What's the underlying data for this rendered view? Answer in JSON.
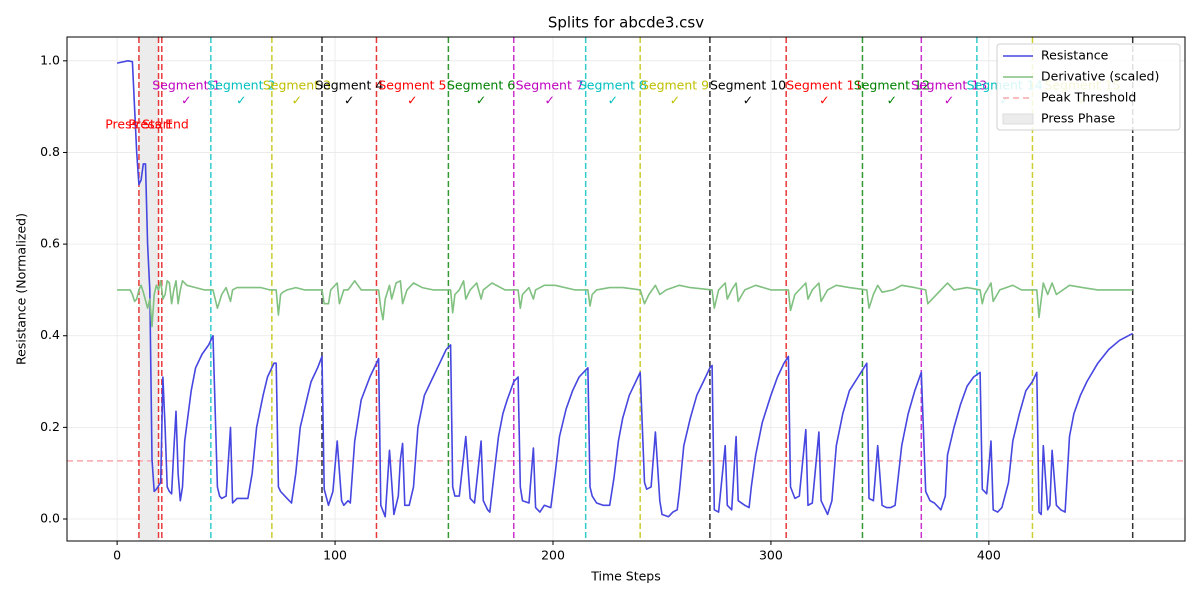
{
  "chart_data": {
    "type": "line",
    "title": "Splits for abcde3.csv",
    "xlabel": "Time Steps",
    "ylabel": "Resistance (Normalized)",
    "xlim": [
      -23,
      490
    ],
    "ylim": [
      -0.048,
      1.052
    ],
    "xticks": [
      0,
      100,
      200,
      300,
      400
    ],
    "yticks": [
      {
        "value": 0,
        "label": "0.0"
      },
      {
        "value": 0.2,
        "label": "0.2"
      },
      {
        "value": 0.4,
        "label": "0.4"
      },
      {
        "value": 0.6,
        "label": "0.6"
      },
      {
        "value": 0.8,
        "label": "0.8"
      },
      {
        "value": 1,
        "label": "1.0"
      }
    ],
    "grid": true,
    "legend": "upper right",
    "series": [
      {
        "name": "Resistance",
        "color": "#4646e0",
        "x": [
          0,
          5,
          7,
          9,
          10,
          11,
          12,
          13,
          14,
          15,
          16,
          17,
          18,
          20,
          21,
          22,
          23,
          24,
          25,
          26,
          27,
          28,
          29,
          30,
          31,
          34,
          36,
          39,
          42,
          44,
          46,
          47,
          48,
          50,
          52,
          53,
          55,
          60,
          62,
          64,
          67,
          69,
          72,
          73,
          74,
          75,
          78,
          80,
          82,
          84,
          87,
          89,
          92,
          94,
          95,
          97,
          99,
          101,
          103,
          104,
          106,
          107,
          109,
          112,
          116,
          120,
          121,
          123,
          125,
          127,
          129,
          130,
          131,
          132,
          134,
          136,
          138,
          141,
          145,
          148,
          151,
          153,
          154,
          155,
          157,
          160,
          162,
          164,
          167,
          168,
          170,
          171,
          173,
          175,
          177,
          179,
          182,
          184,
          185,
          186,
          189,
          191,
          192,
          194,
          196,
          199,
          201,
          203,
          206,
          209,
          212,
          216,
          217,
          218,
          220,
          223,
          226,
          228,
          230,
          232,
          235,
          238,
          240,
          242,
          243,
          245,
          247,
          249,
          250,
          253,
          255,
          257,
          258,
          260,
          263,
          266,
          269,
          272,
          273,
          274,
          276,
          279,
          280,
          282,
          284,
          285,
          288,
          290,
          291,
          293,
          296,
          300,
          303,
          306,
          308,
          309,
          311,
          313,
          316,
          317,
          319,
          322,
          323,
          326,
          328,
          330,
          333,
          336,
          340,
          344,
          345,
          347,
          349,
          351,
          353,
          355,
          357,
          360,
          363,
          366,
          369,
          371,
          373,
          375,
          378,
          380,
          381,
          384,
          387,
          390,
          393,
          396,
          397,
          399,
          401,
          402,
          404,
          406,
          409,
          411,
          414,
          417,
          420,
          422,
          423,
          424,
          425,
          427,
          428,
          429,
          431,
          433,
          435,
          437,
          439,
          442,
          445,
          450,
          455,
          460,
          466
        ],
        "values": [
          0.995,
          1.0,
          0.998,
          0.8,
          0.73,
          0.74,
          0.775,
          0.775,
          0.6,
          0.5,
          0.13,
          0.06,
          0.065,
          0.08,
          0.31,
          0.2,
          0.07,
          0.06,
          0.055,
          0.15,
          0.235,
          0.1,
          0.04,
          0.07,
          0.17,
          0.28,
          0.33,
          0.36,
          0.38,
          0.4,
          0.07,
          0.05,
          0.045,
          0.05,
          0.2,
          0.035,
          0.045,
          0.045,
          0.1,
          0.2,
          0.27,
          0.31,
          0.34,
          0.34,
          0.07,
          0.06,
          0.045,
          0.035,
          0.1,
          0.2,
          0.26,
          0.3,
          0.33,
          0.355,
          0.065,
          0.03,
          0.06,
          0.17,
          0.04,
          0.03,
          0.04,
          0.035,
          0.17,
          0.26,
          0.31,
          0.35,
          0.03,
          0.005,
          0.15,
          0.01,
          0.05,
          0.13,
          0.165,
          0.03,
          0.03,
          0.07,
          0.2,
          0.27,
          0.31,
          0.34,
          0.37,
          0.38,
          0.07,
          0.05,
          0.05,
          0.18,
          0.045,
          0.035,
          0.17,
          0.04,
          0.02,
          0.015,
          0.1,
          0.18,
          0.23,
          0.26,
          0.3,
          0.31,
          0.07,
          0.04,
          0.035,
          0.155,
          0.025,
          0.015,
          0.03,
          0.025,
          0.1,
          0.18,
          0.24,
          0.28,
          0.31,
          0.33,
          0.07,
          0.05,
          0.035,
          0.03,
          0.03,
          0.09,
          0.17,
          0.22,
          0.27,
          0.3,
          0.32,
          0.08,
          0.065,
          0.07,
          0.19,
          0.04,
          0.01,
          0.005,
          0.015,
          0.02,
          0.06,
          0.16,
          0.22,
          0.27,
          0.3,
          0.33,
          0.335,
          0.02,
          0.015,
          0.16,
          0.03,
          0.02,
          0.18,
          0.04,
          0.03,
          0.025,
          0.07,
          0.14,
          0.21,
          0.27,
          0.31,
          0.34,
          0.355,
          0.07,
          0.045,
          0.05,
          0.195,
          0.03,
          0.035,
          0.19,
          0.04,
          0.01,
          0.04,
          0.16,
          0.23,
          0.28,
          0.31,
          0.34,
          0.045,
          0.04,
          0.16,
          0.03,
          0.025,
          0.025,
          0.03,
          0.16,
          0.23,
          0.28,
          0.32,
          0.06,
          0.04,
          0.035,
          0.02,
          0.05,
          0.14,
          0.2,
          0.25,
          0.29,
          0.31,
          0.32,
          0.065,
          0.055,
          0.17,
          0.02,
          0.015,
          0.025,
          0.08,
          0.17,
          0.23,
          0.28,
          0.3,
          0.32,
          0.015,
          0.01,
          0.16,
          0.02,
          0.03,
          0.15,
          0.03,
          0.02,
          0.015,
          0.18,
          0.23,
          0.27,
          0.3,
          0.34,
          0.37,
          0.39,
          0.405
        ]
      },
      {
        "name": "Derivative (scaled)",
        "color": "#80c080",
        "x": [
          0,
          6,
          7,
          8,
          9,
          10,
          11,
          12,
          14,
          15,
          16,
          17,
          18,
          19,
          20,
          21,
          22,
          23,
          24,
          25,
          26,
          27,
          28,
          29,
          30,
          32,
          36,
          40,
          44,
          46,
          47,
          48,
          50,
          52,
          53,
          55,
          62,
          66,
          70,
          73,
          74,
          75,
          76,
          78,
          82,
          86,
          94,
          95,
          97,
          98,
          101,
          102,
          104,
          106,
          109,
          112,
          120,
          121,
          122,
          123,
          125,
          126,
          128,
          130,
          131,
          133,
          136,
          140,
          145,
          153,
          154,
          155,
          157,
          159,
          160,
          162,
          165,
          167,
          168,
          172,
          178,
          184,
          185,
          186,
          189,
          191,
          192,
          196,
          201,
          210,
          216,
          217,
          218,
          220,
          226,
          232,
          240,
          242,
          244,
          247,
          249,
          252,
          258,
          263,
          273,
          274,
          276,
          279,
          280,
          282,
          284,
          285,
          288,
          293,
          300,
          308,
          309,
          311,
          316,
          317,
          319,
          322,
          323,
          326,
          330,
          336,
          344,
          345,
          347,
          349,
          351,
          356,
          360,
          366,
          371,
          372,
          374,
          378,
          381,
          384,
          390,
          396,
          397,
          398,
          401,
          402,
          405,
          411,
          415,
          422,
          423,
          425,
          427,
          429,
          431,
          437,
          443,
          450,
          466
        ],
        "values": [
          0.5,
          0.5,
          0.49,
          0.475,
          0.48,
          0.5,
          0.51,
          0.495,
          0.46,
          0.48,
          0.42,
          0.49,
          0.51,
          0.5,
          0.52,
          0.48,
          0.49,
          0.52,
          0.515,
          0.47,
          0.5,
          0.52,
          0.47,
          0.5,
          0.52,
          0.51,
          0.505,
          0.5,
          0.5,
          0.46,
          0.475,
          0.49,
          0.505,
          0.475,
          0.5,
          0.505,
          0.505,
          0.505,
          0.5,
          0.5,
          0.445,
          0.49,
          0.495,
          0.5,
          0.505,
          0.5,
          0.5,
          0.47,
          0.47,
          0.5,
          0.515,
          0.47,
          0.5,
          0.5,
          0.52,
          0.5,
          0.5,
          0.46,
          0.435,
          0.48,
          0.51,
          0.48,
          0.515,
          0.52,
          0.47,
          0.5,
          0.515,
          0.505,
          0.5,
          0.5,
          0.45,
          0.49,
          0.5,
          0.52,
          0.48,
          0.5,
          0.515,
          0.48,
          0.5,
          0.515,
          0.5,
          0.5,
          0.46,
          0.49,
          0.505,
          0.48,
          0.5,
          0.51,
          0.51,
          0.5,
          0.5,
          0.465,
          0.49,
          0.5,
          0.505,
          0.505,
          0.5,
          0.47,
          0.49,
          0.51,
          0.49,
          0.5,
          0.51,
          0.505,
          0.5,
          0.46,
          0.5,
          0.515,
          0.48,
          0.5,
          0.515,
          0.475,
          0.5,
          0.51,
          0.5,
          0.5,
          0.455,
          0.49,
          0.515,
          0.48,
          0.5,
          0.515,
          0.475,
          0.5,
          0.51,
          0.505,
          0.5,
          0.46,
          0.49,
          0.51,
          0.495,
          0.5,
          0.51,
          0.505,
          0.5,
          0.47,
          0.48,
          0.5,
          0.515,
          0.5,
          0.505,
          0.5,
          0.47,
          0.49,
          0.515,
          0.475,
          0.5,
          0.51,
          0.5,
          0.5,
          0.44,
          0.515,
          0.49,
          0.515,
          0.49,
          0.51,
          0.505,
          0.5,
          0.5
        ]
      }
    ],
    "threshold": {
      "name": "Peak Threshold",
      "value": 0.127,
      "color": "#f7a8ae"
    },
    "press_phase": {
      "name": "Press Phase",
      "start": 10,
      "end": 19,
      "color": "#ececec",
      "start_label": "Press Start",
      "end_label": "Press End",
      "label_color": "#ff0000",
      "line_color": "#e8393a"
    },
    "vlines": [
      {
        "x": 20.5,
        "color": "#e8393a"
      },
      {
        "x": 43,
        "color": "#33cccc"
      },
      {
        "x": 71,
        "color": "#cccc33"
      },
      {
        "x": 94,
        "color": "#333333"
      },
      {
        "x": 119,
        "color": "#e8393a"
      },
      {
        "x": 152,
        "color": "#339933"
      },
      {
        "x": 182,
        "color": "#cc33cc"
      },
      {
        "x": 215,
        "color": "#33cccc"
      },
      {
        "x": 240,
        "color": "#cccc33"
      },
      {
        "x": 272,
        "color": "#333333"
      },
      {
        "x": 307,
        "color": "#e8393a"
      },
      {
        "x": 342,
        "color": "#339933"
      },
      {
        "x": 369,
        "color": "#cc33cc"
      },
      {
        "x": 394.5,
        "color": "#33cccc"
      },
      {
        "x": 420,
        "color": "#cccc33"
      },
      {
        "x": 466,
        "color": "#333333"
      }
    ],
    "segments": [
      {
        "label": "Segment 1",
        "check": "✓",
        "color": "#bf00bf"
      },
      {
        "label": "Segment 2",
        "check": "✓",
        "color": "#00bfbf"
      },
      {
        "label": "Segment 3",
        "check": "✓",
        "color": "#bfbf00"
      },
      {
        "label": "Segment 4",
        "check": "✓",
        "color": "#000000"
      },
      {
        "label": "Segment 5",
        "check": "✓",
        "color": "#ff0000"
      },
      {
        "label": "Segment 6",
        "check": "✓",
        "color": "#008000"
      },
      {
        "label": "Segment 7",
        "check": "✓",
        "color": "#bf00bf"
      },
      {
        "label": "Segment 8",
        "check": "✓",
        "color": "#00bfbf"
      },
      {
        "label": "Segment 9",
        "check": "✓",
        "color": "#bfbf00"
      },
      {
        "label": "Segment 10",
        "check": "✓",
        "color": "#000000"
      },
      {
        "label": "Segment 11",
        "check": "✓",
        "color": "#ff0000"
      },
      {
        "label": "Segment 12",
        "check": "✓",
        "color": "#008000"
      },
      {
        "label": "Segment 13",
        "check": "✓",
        "color": "#bf00bf"
      },
      {
        "label": "Segment 14",
        "check": "✓",
        "color": "#00bfbf"
      },
      {
        "label": "Segment 15",
        "check": "✓",
        "color": "#bfbf00"
      }
    ]
  }
}
